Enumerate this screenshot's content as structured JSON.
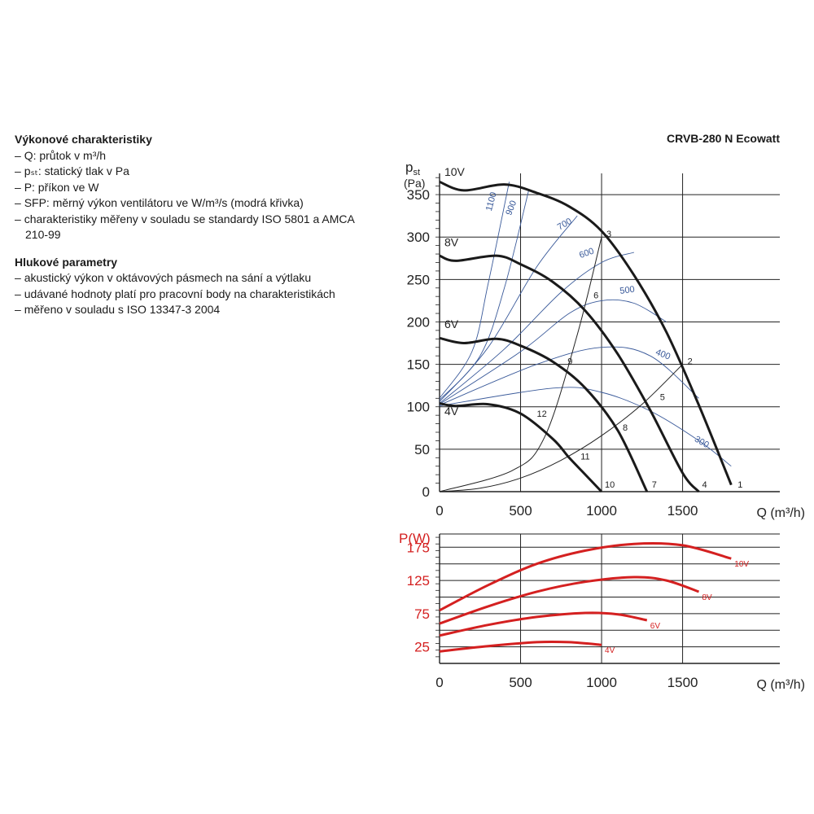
{
  "specs": {
    "perf_title": "Výkonové charakteristiky",
    "perf_items": [
      "Q: průtok v m³/h",
      "pₛₜ: statický tlak v Pa",
      "P: příkon ve W",
      "SFP: měrný výkon ventilátoru ve W/m³/s (modrá křivka)",
      "charakteristiky měřeny v souladu se standardy ISO 5801 a AMCA 210-99"
    ],
    "noise_title": "Hlukové parametry",
    "noise_items": [
      "akustický výkon v oktávových pásmech na sání a výtlaku",
      "udávané hodnoty platí pro pracovní body na charakteristikách",
      "měřeno v souladu s ISO 13347-3 2004"
    ]
  },
  "product": "CRVB-280 N Ecowatt",
  "colors": {
    "fan_curve": "#1a1a1a",
    "sfp_curve": "#3a5a9a",
    "power_curve": "#d42020",
    "grid": "#222222"
  },
  "chart_data": [
    {
      "type": "line",
      "ylabel_main": "p",
      "ylabel_sub": "st",
      "yunit": "(Pa)",
      "xlabel": "Q (m³/h)",
      "xlim": [
        0,
        2100
      ],
      "ylim": [
        0,
        375
      ],
      "xticks": [
        0,
        500,
        1000,
        1500
      ],
      "yticks": [
        0,
        50,
        100,
        150,
        200,
        250,
        300,
        350
      ],
      "grid": true,
      "series": [
        {
          "name": "10V",
          "x": [
            0,
            150,
            400,
            600,
            800,
            1000,
            1200,
            1400,
            1600,
            1800
          ],
          "y": [
            365,
            355,
            362,
            352,
            336,
            307,
            255,
            188,
            102,
            8
          ]
        },
        {
          "name": "8V",
          "x": [
            0,
            100,
            350,
            500,
            700,
            900,
            1100,
            1300,
            1500,
            1600
          ],
          "y": [
            278,
            272,
            278,
            268,
            247,
            213,
            162,
            96,
            22,
            0
          ]
        },
        {
          "name": "6V",
          "x": [
            0,
            150,
            350,
            500,
            700,
            900,
            1100,
            1280
          ],
          "y": [
            181,
            175,
            180,
            172,
            153,
            122,
            72,
            0
          ]
        },
        {
          "name": "4V",
          "x": [
            0,
            100,
            300,
            500,
            700,
            800,
            900,
            1000
          ],
          "y": [
            104,
            101,
            103,
            92,
            62,
            40,
            20,
            0
          ]
        }
      ],
      "sfp_curves": [
        {
          "name": "1100",
          "x": [
            0,
            200,
            300,
            430
          ],
          "y": [
            110,
            165,
            245,
            365
          ]
        },
        {
          "name": "900",
          "x": [
            0,
            250,
            400,
            550
          ],
          "y": [
            108,
            160,
            240,
            355
          ]
        },
        {
          "name": "700",
          "x": [
            0,
            300,
            600,
            850
          ],
          "y": [
            106,
            170,
            265,
            325
          ]
        },
        {
          "name": "600",
          "x": [
            0,
            400,
            750,
            1000,
            1200
          ],
          "y": [
            104,
            168,
            235,
            270,
            282
          ]
        },
        {
          "name": "500",
          "x": [
            0,
            500,
            800,
            1000,
            1200,
            1400
          ],
          "y": [
            103,
            165,
            210,
            225,
            222,
            200
          ]
        },
        {
          "name": "400",
          "x": [
            0,
            600,
            1000,
            1300,
            1600
          ],
          "y": [
            102,
            150,
            170,
            160,
            110
          ]
        },
        {
          "name": "300",
          "x": [
            0,
            700,
            1000,
            1300,
            1600,
            1800
          ],
          "y": [
            101,
            122,
            117,
            95,
            60,
            30
          ]
        }
      ],
      "annotations": [
        {
          "text": "10V",
          "x": 30,
          "y": 372
        },
        {
          "text": "8V",
          "x": 30,
          "y": 289
        },
        {
          "text": "6V",
          "x": 30,
          "y": 193
        },
        {
          "text": "4V",
          "x": 30,
          "y": 90
        },
        {
          "text": "1100",
          "x": 320,
          "y": 330,
          "rot": -75
        },
        {
          "text": "900",
          "x": 440,
          "y": 325,
          "rot": -68
        },
        {
          "text": "700",
          "x": 740,
          "y": 308,
          "rot": -30
        },
        {
          "text": "600",
          "x": 870,
          "y": 275,
          "rot": -20
        },
        {
          "text": "500",
          "x": 1115,
          "y": 233,
          "rot": -8
        },
        {
          "text": "400",
          "x": 1330,
          "y": 162,
          "rot": 22
        },
        {
          "text": "300",
          "x": 1570,
          "y": 60,
          "rot": 30
        }
      ],
      "system_lines": [
        {
          "x": [
            0,
            250,
            500,
            750,
            1000,
            1250,
            1500
          ],
          "y": [
            0,
            4,
            16,
            37,
            66,
            103,
            150
          ]
        },
        {
          "x": [
            0,
            450,
            650,
            850,
            1000
          ],
          "y": [
            0,
            25,
            65,
            185,
            300
          ]
        }
      ],
      "points": [
        {
          "label": "1",
          "x": 1810,
          "y": 5
        },
        {
          "label": "2",
          "x": 1500,
          "y": 150
        },
        {
          "label": "3",
          "x": 1000,
          "y": 300
        },
        {
          "label": "4",
          "x": 1590,
          "y": 5
        },
        {
          "label": "5",
          "x": 1330,
          "y": 108
        },
        {
          "label": "6",
          "x": 920,
          "y": 228
        },
        {
          "label": "7",
          "x": 1280,
          "y": 5
        },
        {
          "label": "8",
          "x": 1100,
          "y": 72
        },
        {
          "label": "9",
          "x": 760,
          "y": 150
        },
        {
          "label": "10",
          "x": 990,
          "y": 5
        },
        {
          "label": "11",
          "x": 840,
          "y": 38
        },
        {
          "label": "12",
          "x": 570,
          "y": 88
        }
      ]
    },
    {
      "type": "line",
      "ylabel": "P(W)",
      "xlabel": "Q (m³/h)",
      "xlim": [
        0,
        2100
      ],
      "ylim": [
        0,
        195
      ],
      "xticks": [
        0,
        500,
        1000,
        1500
      ],
      "yticks": [
        25,
        75,
        125,
        175
      ],
      "grid": true,
      "series": [
        {
          "name": "10V",
          "x": [
            0,
            300,
            600,
            900,
            1200,
            1500,
            1800
          ],
          "y": [
            80,
            118,
            150,
            170,
            180,
            178,
            158
          ]
        },
        {
          "name": "8V",
          "x": [
            0,
            300,
            600,
            900,
            1200,
            1400,
            1600
          ],
          "y": [
            60,
            86,
            108,
            123,
            130,
            125,
            108
          ]
        },
        {
          "name": "6V",
          "x": [
            0,
            300,
            600,
            900,
            1100,
            1280
          ],
          "y": [
            42,
            58,
            70,
            76,
            74,
            65
          ]
        },
        {
          "name": "4V",
          "x": [
            0,
            300,
            600,
            800,
            1000
          ],
          "y": [
            18,
            26,
            32,
            32,
            28
          ]
        }
      ]
    }
  ]
}
